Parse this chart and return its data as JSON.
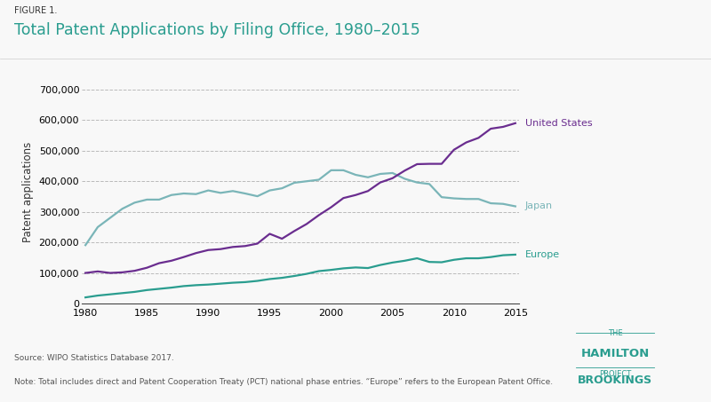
{
  "title": "Total Patent Applications by Filing Office, 1980–2015",
  "figure_label": "FIGURE 1.",
  "ylabel": "Patent applications",
  "source_text": "Source: WIPO Statistics Database 2017.",
  "note_text": "Note: Total includes direct and Patent Cooperation Treaty (PCT) national phase entries. “Europe” refers to the European Patent Office.",
  "years": [
    1980,
    1981,
    1982,
    1983,
    1984,
    1985,
    1986,
    1987,
    1988,
    1989,
    1990,
    1991,
    1992,
    1993,
    1994,
    1995,
    1996,
    1997,
    1998,
    1999,
    2000,
    2001,
    2002,
    2003,
    2004,
    2005,
    2006,
    2007,
    2008,
    2009,
    2010,
    2011,
    2012,
    2013,
    2014,
    2015
  ],
  "united_states": [
    100000,
    105000,
    100000,
    102000,
    107000,
    117000,
    132000,
    140000,
    152000,
    165000,
    175000,
    178000,
    185000,
    188000,
    196000,
    228000,
    212000,
    237000,
    260000,
    289000,
    315000,
    345000,
    355000,
    368000,
    396000,
    410000,
    435000,
    456000,
    457000,
    457000,
    503000,
    527000,
    542000,
    572000,
    578000,
    590000
  ],
  "japan": [
    191000,
    250000,
    280000,
    310000,
    330000,
    340000,
    340000,
    355000,
    360000,
    358000,
    370000,
    362000,
    368000,
    360000,
    351000,
    370000,
    377000,
    395000,
    400000,
    405000,
    436000,
    436000,
    421000,
    413000,
    424000,
    427000,
    408000,
    396000,
    391000,
    348000,
    344000,
    342000,
    342000,
    328000,
    326000,
    318000
  ],
  "europe": [
    20000,
    26000,
    30000,
    34000,
    38000,
    44000,
    48000,
    52000,
    57000,
    60000,
    62000,
    65000,
    68000,
    70000,
    74000,
    80000,
    84000,
    90000,
    97000,
    106000,
    110000,
    115000,
    118000,
    116000,
    126000,
    134000,
    140000,
    148000,
    136000,
    135000,
    143000,
    148000,
    148000,
    152000,
    158000,
    160000
  ],
  "us_color": "#6a2d8f",
  "japan_color": "#7ab5b8",
  "europe_color": "#2a9d8f",
  "background_color": "#f8f8f8",
  "grid_color": "#bbbbbb",
  "ylim": [
    0,
    730000
  ],
  "yticks": [
    0,
    100000,
    200000,
    300000,
    400000,
    500000,
    600000,
    700000
  ],
  "xlim": [
    1980,
    2015
  ]
}
